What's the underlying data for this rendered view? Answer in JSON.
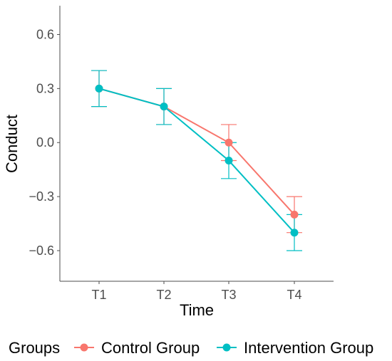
{
  "chart_data": {
    "type": "line",
    "title": "",
    "xlabel": "Time",
    "ylabel": "Conduct",
    "categories": [
      "T1",
      "T2",
      "T3",
      "T4"
    ],
    "ylim": [
      -0.77,
      0.76
    ],
    "yticks": [
      -0.6,
      -0.3,
      0.0,
      0.3,
      0.6
    ],
    "ytick_labels": [
      "−0.6",
      "−0.3",
      "0.0",
      "0.3",
      "0.6"
    ],
    "grid": false,
    "legend": {
      "title": "Groups",
      "position": "bottom"
    },
    "series": [
      {
        "name": "Control Group",
        "color": "#F8766D",
        "values": [
          0.3,
          0.2,
          0.0,
          -0.4
        ],
        "error_low": [
          0.2,
          0.1,
          -0.1,
          -0.5
        ],
        "error_high": [
          0.4,
          0.3,
          0.1,
          -0.3
        ]
      },
      {
        "name": "Intervention Group",
        "color": "#00BFC4",
        "values": [
          0.3,
          0.2,
          -0.1,
          -0.5
        ],
        "error_low": [
          0.2,
          0.1,
          -0.2,
          -0.6
        ],
        "error_high": [
          0.4,
          0.3,
          0.0,
          -0.4
        ]
      }
    ]
  }
}
